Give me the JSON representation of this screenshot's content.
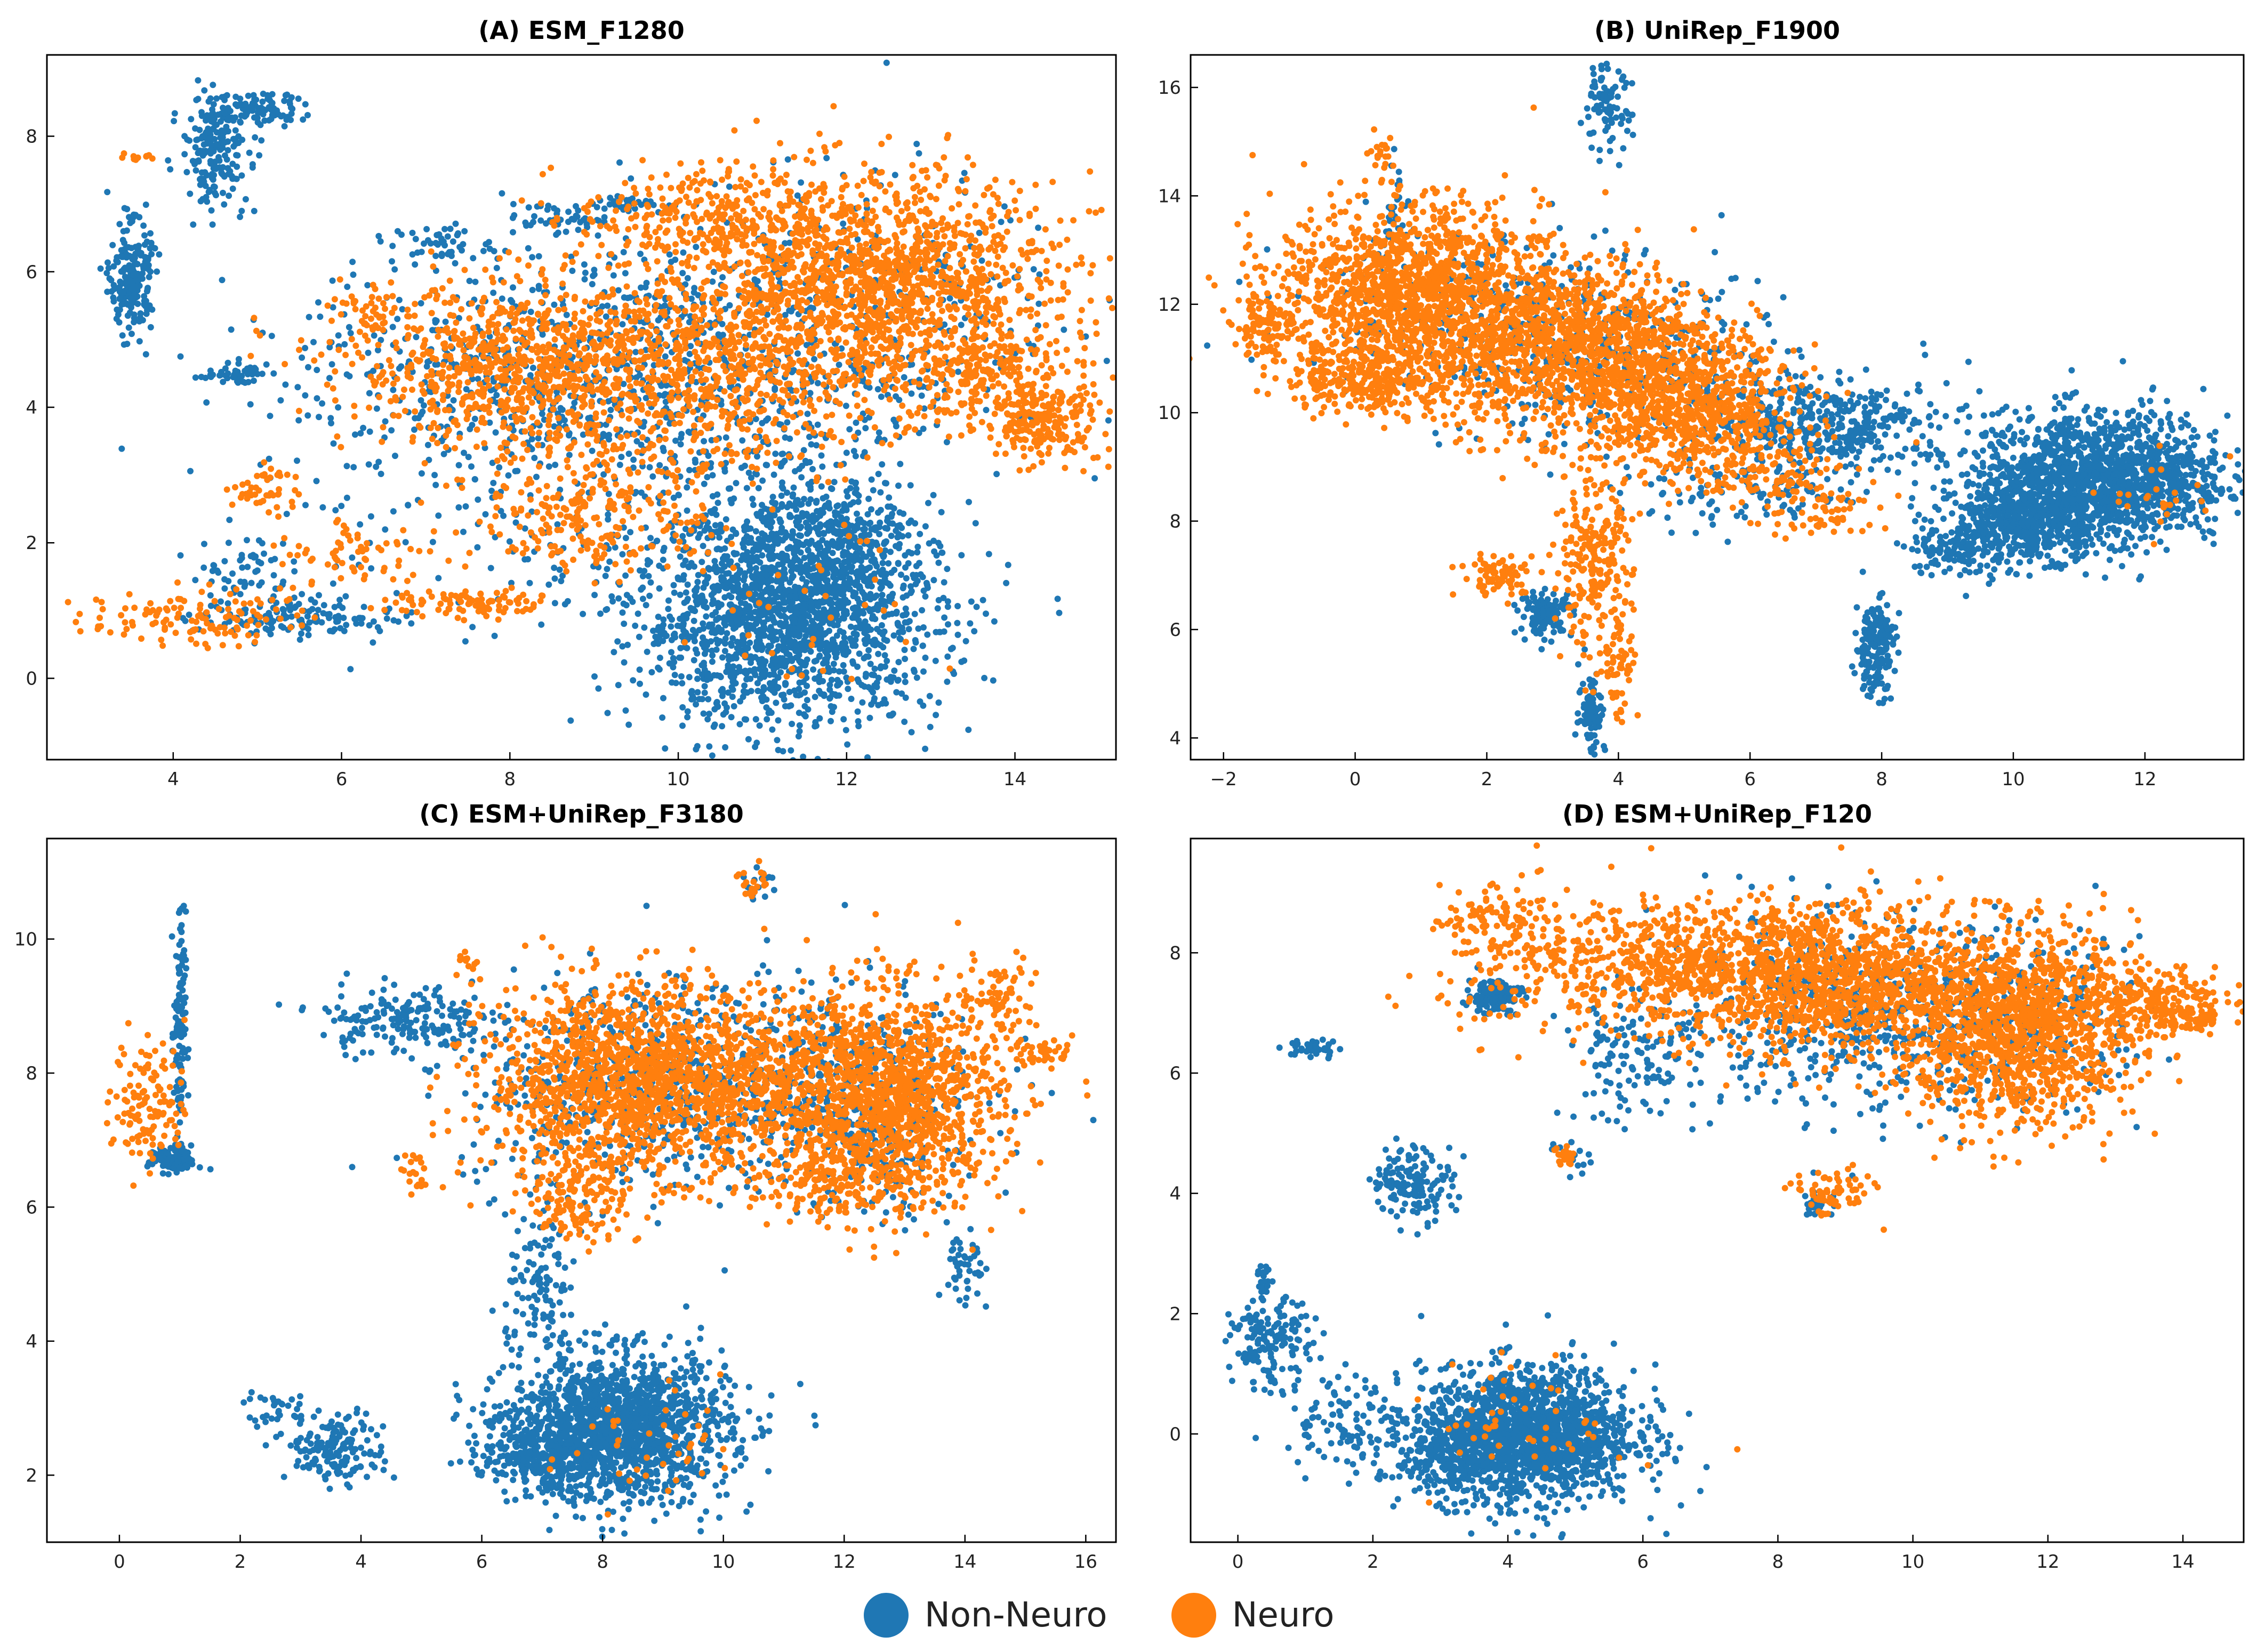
{
  "colors": {
    "non_neuro": "#1f77b4",
    "neuro": "#ff7f0e"
  },
  "legend": {
    "items": [
      {
        "label": "Non-Neuro",
        "color": "#1f77b4"
      },
      {
        "label": "Neuro",
        "color": "#ff7f0e"
      }
    ]
  },
  "chart_data": [
    {
      "type": "scatter",
      "title": "(A) ESM_F1280",
      "xlim": [
        2.5,
        15.2
      ],
      "ylim": [
        -1.2,
        9.2
      ],
      "xticks": [
        4,
        6,
        8,
        10,
        12,
        14
      ],
      "yticks": [
        0,
        2,
        4,
        6,
        8
      ],
      "xlabel": "",
      "ylabel": "",
      "series": [
        {
          "name": "Non-Neuro",
          "color": "#1f77b4",
          "clusters": [
            {
              "cx": 11.3,
              "cy": 0.9,
              "sx": 0.9,
              "sy": 0.8,
              "n": 1800
            },
            {
              "cx": 11.8,
              "cy": 2.0,
              "sx": 0.5,
              "sy": 0.5,
              "n": 350
            },
            {
              "cx": 3.5,
              "cy": 5.9,
              "sx": 0.12,
              "sy": 0.4,
              "n": 220
            },
            {
              "cx": 4.5,
              "cy": 7.8,
              "sx": 0.2,
              "sy": 0.4,
              "n": 200
            },
            {
              "cx": 5.0,
              "cy": 8.4,
              "sx": 0.3,
              "sy": 0.12,
              "n": 90
            },
            {
              "cx": 4.7,
              "cy": 4.5,
              "sx": 0.2,
              "sy": 0.06,
              "n": 45
            },
            {
              "cx": 5.5,
              "cy": 0.9,
              "sx": 0.6,
              "sy": 0.15,
              "n": 130
            },
            {
              "cx": 8.2,
              "cy": 4.6,
              "sx": 1.4,
              "sy": 0.8,
              "n": 520
            },
            {
              "cx": 10.5,
              "cy": 4.0,
              "sx": 1.2,
              "sy": 1.2,
              "n": 420
            },
            {
              "cx": 7.2,
              "cy": 6.4,
              "sx": 0.3,
              "sy": 0.15,
              "n": 45
            },
            {
              "cx": 8.5,
              "cy": 6.8,
              "sx": 0.3,
              "sy": 0.1,
              "n": 45
            },
            {
              "cx": 9.4,
              "cy": 7.0,
              "sx": 0.2,
              "sy": 0.05,
              "n": 30
            },
            {
              "cx": 12.0,
              "cy": 5.5,
              "sx": 1.3,
              "sy": 1.0,
              "n": 350
            },
            {
              "cx": 4.8,
              "cy": 1.6,
              "sx": 0.3,
              "sy": 0.3,
              "n": 60
            },
            {
              "cx": 7.8,
              "cy": 2.5,
              "sx": 1.5,
              "sy": 1.0,
              "n": 150
            }
          ]
        },
        {
          "name": "Neuro",
          "color": "#ff7f0e",
          "clusters": [
            {
              "cx": 12.3,
              "cy": 5.8,
              "sx": 1.1,
              "sy": 0.8,
              "n": 1600
            },
            {
              "cx": 8.3,
              "cy": 4.6,
              "sx": 1.1,
              "sy": 0.6,
              "n": 900
            },
            {
              "cx": 10.5,
              "cy": 4.5,
              "sx": 1.0,
              "sy": 0.8,
              "n": 500
            },
            {
              "cx": 14.3,
              "cy": 3.8,
              "sx": 0.35,
              "sy": 0.3,
              "n": 230
            },
            {
              "cx": 13.6,
              "cy": 4.5,
              "sx": 0.6,
              "sy": 0.3,
              "n": 170
            },
            {
              "cx": 4.2,
              "cy": 0.9,
              "sx": 0.6,
              "sy": 0.2,
              "n": 120
            },
            {
              "cx": 5.1,
              "cy": 2.8,
              "sx": 0.2,
              "sy": 0.2,
              "n": 45
            },
            {
              "cx": 9.0,
              "cy": 2.5,
              "sx": 0.7,
              "sy": 0.5,
              "n": 260
            },
            {
              "cx": 7.6,
              "cy": 1.1,
              "sx": 0.5,
              "sy": 0.1,
              "n": 90
            },
            {
              "cx": 6.3,
              "cy": 5.4,
              "sx": 0.2,
              "sy": 0.2,
              "n": 35
            },
            {
              "cx": 3.6,
              "cy": 7.7,
              "sx": 0.1,
              "sy": 0.05,
              "n": 10
            },
            {
              "cx": 11.5,
              "cy": 1.0,
              "sx": 0.8,
              "sy": 0.8,
              "n": 35
            },
            {
              "cx": 10.2,
              "cy": 6.8,
              "sx": 0.7,
              "sy": 0.4,
              "n": 250
            },
            {
              "cx": 6.2,
              "cy": 1.8,
              "sx": 0.5,
              "sy": 0.3,
              "n": 70
            }
          ]
        }
      ]
    },
    {
      "type": "scatter",
      "title": "(B) UniRep_F1900",
      "xlim": [
        -2.5,
        13.5
      ],
      "ylim": [
        3.6,
        16.6
      ],
      "xticks": [
        -2,
        0,
        2,
        4,
        6,
        8,
        10,
        12
      ],
      "yticks": [
        4,
        6,
        8,
        10,
        12,
        14,
        16
      ],
      "xlabel": "",
      "ylabel": "",
      "series": [
        {
          "name": "Non-Neuro",
          "color": "#1f77b4",
          "clusters": [
            {
              "cx": 11.3,
              "cy": 8.8,
              "sx": 1.0,
              "sy": 0.6,
              "n": 1500
            },
            {
              "cx": 10.3,
              "cy": 8.0,
              "sx": 0.6,
              "sy": 0.35,
              "n": 500
            },
            {
              "cx": 9.2,
              "cy": 7.5,
              "sx": 0.4,
              "sy": 0.3,
              "n": 140
            },
            {
              "cx": 7.9,
              "cy": 5.7,
              "sx": 0.15,
              "sy": 0.45,
              "n": 180
            },
            {
              "cx": 3.8,
              "cy": 15.6,
              "sx": 0.2,
              "sy": 0.4,
              "n": 90
            },
            {
              "cx": 2.9,
              "cy": 6.3,
              "sx": 0.2,
              "sy": 0.2,
              "n": 120
            },
            {
              "cx": 3.6,
              "cy": 4.5,
              "sx": 0.1,
              "sy": 0.4,
              "n": 80
            },
            {
              "cx": 7.5,
              "cy": 9.7,
              "sx": 0.8,
              "sy": 0.4,
              "n": 280
            },
            {
              "cx": 4.0,
              "cy": 11.0,
              "sx": 1.3,
              "sy": 0.8,
              "n": 320
            },
            {
              "cx": 6.5,
              "cy": 10.0,
              "sx": 0.7,
              "sy": 0.4,
              "n": 140
            },
            {
              "cx": 6.0,
              "cy": 8.5,
              "sx": 1.0,
              "sy": 0.3,
              "n": 110
            },
            {
              "cx": 0.6,
              "cy": 13.9,
              "sx": 0.1,
              "sy": 0.4,
              "n": 25
            },
            {
              "cx": 1.5,
              "cy": 12.0,
              "sx": 1.2,
              "sy": 0.8,
              "n": 200
            }
          ]
        },
        {
          "name": "Neuro",
          "color": "#ff7f0e",
          "clusters": [
            {
              "cx": 0.8,
              "cy": 12.2,
              "sx": 1.0,
              "sy": 0.8,
              "n": 1400
            },
            {
              "cx": 3.4,
              "cy": 11.2,
              "sx": 1.1,
              "sy": 0.8,
              "n": 1300
            },
            {
              "cx": 5.1,
              "cy": 10.0,
              "sx": 0.8,
              "sy": 0.6,
              "n": 700
            },
            {
              "cx": 0.3,
              "cy": 10.6,
              "sx": 0.7,
              "sy": 0.3,
              "n": 300
            },
            {
              "cx": -1.4,
              "cy": 11.6,
              "sx": 0.2,
              "sy": 0.3,
              "n": 90
            },
            {
              "cx": 3.6,
              "cy": 7.2,
              "sx": 0.3,
              "sy": 0.7,
              "n": 220
            },
            {
              "cx": 2.2,
              "cy": 7.0,
              "sx": 0.3,
              "sy": 0.2,
              "n": 80
            },
            {
              "cx": 4.0,
              "cy": 5.5,
              "sx": 0.15,
              "sy": 0.6,
              "n": 60
            },
            {
              "cx": 0.4,
              "cy": 14.8,
              "sx": 0.1,
              "sy": 0.15,
              "n": 20
            },
            {
              "cx": 7.2,
              "cy": 8.2,
              "sx": 0.5,
              "sy": 0.3,
              "n": 60
            },
            {
              "cx": 12.3,
              "cy": 8.5,
              "sx": 0.4,
              "sy": 0.4,
              "n": 25
            },
            {
              "cx": 6.4,
              "cy": 8.8,
              "sx": 0.5,
              "sy": 0.3,
              "n": 90
            }
          ]
        }
      ]
    },
    {
      "type": "scatter",
      "title": "(C) ESM+UniRep_F3180",
      "xlim": [
        -1.2,
        16.5
      ],
      "ylim": [
        1.0,
        11.5
      ],
      "xticks": [
        0,
        2,
        4,
        6,
        8,
        10,
        12,
        14,
        16
      ],
      "yticks": [
        2,
        4,
        6,
        8,
        10
      ],
      "xlabel": "",
      "ylabel": "",
      "series": [
        {
          "name": "Non-Neuro",
          "color": "#1f77b4",
          "clusters": [
            {
              "cx": 8.3,
              "cy": 2.7,
              "sx": 0.9,
              "sy": 0.55,
              "n": 1500
            },
            {
              "cx": 7.0,
              "cy": 2.4,
              "sx": 0.5,
              "sy": 0.3,
              "n": 300
            },
            {
              "cx": 3.6,
              "cy": 2.4,
              "sx": 0.4,
              "sy": 0.25,
              "n": 170
            },
            {
              "cx": 2.6,
              "cy": 3.0,
              "sx": 0.25,
              "sy": 0.15,
              "n": 30
            },
            {
              "cx": 0.9,
              "cy": 6.7,
              "sx": 0.2,
              "sy": 0.1,
              "n": 110
            },
            {
              "cx": 1.0,
              "cy": 8.6,
              "sx": 0.05,
              "sy": 0.9,
              "n": 110
            },
            {
              "cx": 8.5,
              "cy": 7.8,
              "sx": 1.4,
              "sy": 0.8,
              "n": 520
            },
            {
              "cx": 11.5,
              "cy": 8.0,
              "sx": 1.4,
              "sy": 0.7,
              "n": 420
            },
            {
              "cx": 4.7,
              "cy": 8.8,
              "sx": 0.7,
              "sy": 0.25,
              "n": 180
            },
            {
              "cx": 14.0,
              "cy": 5.0,
              "sx": 0.15,
              "sy": 0.35,
              "n": 45
            },
            {
              "cx": 7.0,
              "cy": 4.7,
              "sx": 0.3,
              "sy": 0.6,
              "n": 120
            },
            {
              "cx": 10.6,
              "cy": 10.8,
              "sx": 0.15,
              "sy": 0.15,
              "n": 15
            },
            {
              "cx": 12.5,
              "cy": 6.8,
              "sx": 0.7,
              "sy": 0.5,
              "n": 140
            }
          ]
        },
        {
          "name": "Neuro",
          "color": "#ff7f0e",
          "clusters": [
            {
              "cx": 8.5,
              "cy": 7.9,
              "sx": 1.2,
              "sy": 0.7,
              "n": 1500
            },
            {
              "cx": 12.8,
              "cy": 7.6,
              "sx": 0.9,
              "sy": 0.8,
              "n": 1300
            },
            {
              "cx": 10.8,
              "cy": 7.8,
              "sx": 0.9,
              "sy": 0.6,
              "n": 400
            },
            {
              "cx": 0.5,
              "cy": 7.6,
              "sx": 0.3,
              "sy": 0.5,
              "n": 120
            },
            {
              "cx": 7.6,
              "cy": 6.2,
              "sx": 0.4,
              "sy": 0.4,
              "n": 150
            },
            {
              "cx": 14.6,
              "cy": 9.1,
              "sx": 0.3,
              "sy": 0.3,
              "n": 70
            },
            {
              "cx": 15.3,
              "cy": 8.3,
              "sx": 0.25,
              "sy": 0.1,
              "n": 40
            },
            {
              "cx": 5.8,
              "cy": 9.6,
              "sx": 0.1,
              "sy": 0.15,
              "n": 12
            },
            {
              "cx": 4.9,
              "cy": 6.5,
              "sx": 0.15,
              "sy": 0.15,
              "n": 20
            },
            {
              "cx": 8.8,
              "cy": 2.4,
              "sx": 0.8,
              "sy": 0.5,
              "n": 40
            },
            {
              "cx": 10.5,
              "cy": 10.8,
              "sx": 0.15,
              "sy": 0.15,
              "n": 18
            },
            {
              "cx": 11.6,
              "cy": 6.3,
              "sx": 0.6,
              "sy": 0.3,
              "n": 120
            }
          ]
        }
      ]
    },
    {
      "type": "scatter",
      "title": "(D) ESM+UniRep_F120",
      "xlim": [
        -0.7,
        14.9
      ],
      "ylim": [
        -1.8,
        9.9
      ],
      "xticks": [
        0,
        2,
        4,
        6,
        8,
        10,
        12,
        14
      ],
      "yticks": [
        0,
        2,
        4,
        6,
        8
      ],
      "xlabel": "",
      "ylabel": "",
      "series": [
        {
          "name": "Non-Neuro",
          "color": "#1f77b4",
          "clusters": [
            {
              "cx": 4.3,
              "cy": 0.0,
              "sx": 0.8,
              "sy": 0.55,
              "n": 1700
            },
            {
              "cx": 3.2,
              "cy": -0.4,
              "sx": 0.4,
              "sy": 0.3,
              "n": 200
            },
            {
              "cx": 0.5,
              "cy": 1.5,
              "sx": 0.3,
              "sy": 0.35,
              "n": 150
            },
            {
              "cx": 1.8,
              "cy": 0.2,
              "sx": 0.6,
              "sy": 0.4,
              "n": 120
            },
            {
              "cx": 2.6,
              "cy": 4.2,
              "sx": 0.3,
              "sy": 0.3,
              "n": 150
            },
            {
              "cx": 1.1,
              "cy": 6.4,
              "sx": 0.2,
              "sy": 0.08,
              "n": 40
            },
            {
              "cx": 3.8,
              "cy": 7.3,
              "sx": 0.2,
              "sy": 0.15,
              "n": 120
            },
            {
              "cx": 9.0,
              "cy": 7.0,
              "sx": 1.4,
              "sy": 0.8,
              "n": 520
            },
            {
              "cx": 11.5,
              "cy": 6.8,
              "sx": 1.0,
              "sy": 0.7,
              "n": 280
            },
            {
              "cx": 5.8,
              "cy": 6.2,
              "sx": 0.5,
              "sy": 0.5,
              "n": 120
            },
            {
              "cx": 8.6,
              "cy": 3.8,
              "sx": 0.15,
              "sy": 0.1,
              "n": 30
            },
            {
              "cx": 4.9,
              "cy": 4.6,
              "sx": 0.15,
              "sy": 0.15,
              "n": 15
            },
            {
              "cx": 0.4,
              "cy": 2.6,
              "sx": 0.05,
              "sy": 0.2,
              "n": 20
            }
          ]
        },
        {
          "name": "Neuro",
          "color": "#ff7f0e",
          "clusters": [
            {
              "cx": 11.5,
              "cy": 6.8,
              "sx": 0.9,
              "sy": 0.8,
              "n": 1400
            },
            {
              "cx": 8.5,
              "cy": 7.6,
              "sx": 1.2,
              "sy": 0.6,
              "n": 1300
            },
            {
              "cx": 13.6,
              "cy": 7.2,
              "sx": 0.5,
              "sy": 0.3,
              "n": 200
            },
            {
              "cx": 4.8,
              "cy": 7.8,
              "sx": 0.9,
              "sy": 0.6,
              "n": 280
            },
            {
              "cx": 6.5,
              "cy": 7.9,
              "sx": 0.6,
              "sy": 0.4,
              "n": 200
            },
            {
              "cx": 8.8,
              "cy": 4.0,
              "sx": 0.3,
              "sy": 0.2,
              "n": 70
            },
            {
              "cx": 4.8,
              "cy": 4.6,
              "sx": 0.1,
              "sy": 0.1,
              "n": 18
            },
            {
              "cx": 4.4,
              "cy": 0.2,
              "sx": 0.7,
              "sy": 0.5,
              "n": 50
            },
            {
              "cx": 14.2,
              "cy": 6.9,
              "sx": 0.2,
              "sy": 0.1,
              "n": 35
            },
            {
              "cx": 3.7,
              "cy": 8.6,
              "sx": 0.4,
              "sy": 0.2,
              "n": 60
            }
          ]
        }
      ]
    }
  ]
}
